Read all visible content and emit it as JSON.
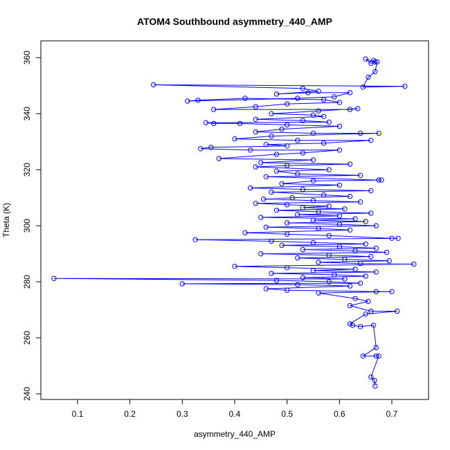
{
  "chart_data": {
    "type": "scatter",
    "title": "ATOM4 Southbound asymmetry_440_AMP",
    "xlabel": "asymmetry_440_AMP",
    "ylabel": "Theta (K)",
    "xlim": [
      0.03,
      0.77
    ],
    "ylim": [
      238,
      366
    ],
    "xticks": [
      0.1,
      0.2,
      0.3,
      0.4,
      0.5,
      0.6,
      0.7
    ],
    "yticks": [
      240,
      260,
      280,
      300,
      320,
      340,
      360
    ],
    "xtick_labels": [
      "0.1",
      "0.2",
      "0.3",
      "0.4",
      "0.5",
      "0.6",
      "0.7"
    ],
    "ytick_labels": [
      "240",
      "260",
      "280",
      "300",
      "320",
      "340",
      "360"
    ],
    "marker": "open-circle",
    "connected": true,
    "series_color": "#0000ff",
    "grid": false,
    "series": [
      {
        "points": [
          [
            0.665,
            359.0
          ],
          [
            0.668,
            358.5
          ],
          [
            0.65,
            359.5
          ],
          [
            0.66,
            358.0
          ],
          [
            0.672,
            358.5
          ],
          [
            0.668,
            355.0
          ],
          [
            0.655,
            353.0
          ],
          [
            0.645,
            349.5
          ],
          [
            0.725,
            349.8
          ],
          [
            0.245,
            350.3
          ],
          [
            0.53,
            349.0
          ],
          [
            0.56,
            348.0
          ],
          [
            0.48,
            347.0
          ],
          [
            0.54,
            347.5
          ],
          [
            0.62,
            347.5
          ],
          [
            0.59,
            346.0
          ],
          [
            0.52,
            345.5
          ],
          [
            0.31,
            344.5
          ],
          [
            0.33,
            344.8
          ],
          [
            0.42,
            345.5
          ],
          [
            0.57,
            345.0
          ],
          [
            0.6,
            344.0
          ],
          [
            0.5,
            343.5
          ],
          [
            0.44,
            342.5
          ],
          [
            0.36,
            341.5
          ],
          [
            0.62,
            341.5
          ],
          [
            0.635,
            341.8
          ],
          [
            0.56,
            341.0
          ],
          [
            0.47,
            340.0
          ],
          [
            0.55,
            339.5
          ],
          [
            0.57,
            339.0
          ],
          [
            0.44,
            338.0
          ],
          [
            0.53,
            337.5
          ],
          [
            0.58,
            337.0
          ],
          [
            0.345,
            336.8
          ],
          [
            0.36,
            336.5
          ],
          [
            0.41,
            336.5
          ],
          [
            0.5,
            336.0
          ],
          [
            0.6,
            335.5
          ],
          [
            0.49,
            334.5
          ],
          [
            0.44,
            333.5
          ],
          [
            0.55,
            333.0
          ],
          [
            0.64,
            333.0
          ],
          [
            0.675,
            333.0
          ],
          [
            0.47,
            332.0
          ],
          [
            0.4,
            331.0
          ],
          [
            0.52,
            330.5
          ],
          [
            0.66,
            330.5
          ],
          [
            0.57,
            329.5
          ],
          [
            0.46,
            329.0
          ],
          [
            0.5,
            328.5
          ],
          [
            0.355,
            328.0
          ],
          [
            0.335,
            327.5
          ],
          [
            0.43,
            327.0
          ],
          [
            0.6,
            327.0
          ],
          [
            0.53,
            326.0
          ],
          [
            0.48,
            325.5
          ],
          [
            0.37,
            324.0
          ],
          [
            0.55,
            323.5
          ],
          [
            0.45,
            322.5
          ],
          [
            0.62,
            322.0
          ],
          [
            0.5,
            321.5
          ],
          [
            0.44,
            321.0
          ],
          [
            0.58,
            320.0
          ],
          [
            0.48,
            319.5
          ],
          [
            0.52,
            318.5
          ],
          [
            0.64,
            318.0
          ],
          [
            0.46,
            317.5
          ],
          [
            0.675,
            316.3
          ],
          [
            0.68,
            316.3
          ],
          [
            0.55,
            316.0
          ],
          [
            0.49,
            315.0
          ],
          [
            0.6,
            314.5
          ],
          [
            0.43,
            313.5
          ],
          [
            0.53,
            313.0
          ],
          [
            0.66,
            312.5
          ],
          [
            0.47,
            312.0
          ],
          [
            0.57,
            311.0
          ],
          [
            0.62,
            310.5
          ],
          [
            0.51,
            310.0
          ],
          [
            0.455,
            309.5
          ],
          [
            0.55,
            309.0
          ],
          [
            0.64,
            308.5
          ],
          [
            0.44,
            308.0
          ],
          [
            0.5,
            307.5
          ],
          [
            0.58,
            307.0
          ],
          [
            0.53,
            306.5
          ],
          [
            0.61,
            306.0
          ],
          [
            0.48,
            305.5
          ],
          [
            0.56,
            305.0
          ],
          [
            0.66,
            304.5
          ],
          [
            0.52,
            304.0
          ],
          [
            0.6,
            303.5
          ],
          [
            0.45,
            303.0
          ],
          [
            0.63,
            302.5
          ],
          [
            0.55,
            302.0
          ],
          [
            0.65,
            301.5
          ],
          [
            0.5,
            301.0
          ],
          [
            0.6,
            300.5
          ],
          [
            0.67,
            300.0
          ],
          [
            0.46,
            299.5
          ],
          [
            0.56,
            299.0
          ],
          [
            0.62,
            298.5
          ],
          [
            0.42,
            297.5
          ],
          [
            0.5,
            297.0
          ],
          [
            0.58,
            296.5
          ],
          [
            0.7,
            295.5
          ],
          [
            0.712,
            295.5
          ],
          [
            0.325,
            295.0
          ],
          [
            0.47,
            294.5
          ],
          [
            0.55,
            294.0
          ],
          [
            0.65,
            293.5
          ],
          [
            0.49,
            293.0
          ],
          [
            0.6,
            292.5
          ],
          [
            0.67,
            292.0
          ],
          [
            0.53,
            291.5
          ],
          [
            0.63,
            291.0
          ],
          [
            0.69,
            290.5
          ],
          [
            0.45,
            290.0
          ],
          [
            0.58,
            289.5
          ],
          [
            0.66,
            289.0
          ],
          [
            0.52,
            288.5
          ],
          [
            0.61,
            288.0
          ],
          [
            0.695,
            287.5
          ],
          [
            0.56,
            287.0
          ],
          [
            0.64,
            286.5
          ],
          [
            0.742,
            286.3
          ],
          [
            0.4,
            285.5
          ],
          [
            0.5,
            285.0
          ],
          [
            0.63,
            284.5
          ],
          [
            0.55,
            284.0
          ],
          [
            0.67,
            283.5
          ],
          [
            0.47,
            283.0
          ],
          [
            0.59,
            282.5
          ],
          [
            0.65,
            282.0
          ],
          [
            0.53,
            281.5
          ],
          [
            0.61,
            281.0
          ],
          [
            0.055,
            281.2
          ],
          [
            0.48,
            280.5
          ],
          [
            0.58,
            280.0
          ],
          [
            0.64,
            279.5
          ],
          [
            0.3,
            279.3
          ],
          [
            0.52,
            279.0
          ],
          [
            0.62,
            278.5
          ],
          [
            0.46,
            277.5
          ],
          [
            0.5,
            277.0
          ],
          [
            0.67,
            276.5
          ],
          [
            0.7,
            276.5
          ],
          [
            0.56,
            276.0
          ],
          [
            0.63,
            274.0
          ],
          [
            0.655,
            273.0
          ],
          [
            0.62,
            271.5
          ],
          [
            0.66,
            269.5
          ],
          [
            0.71,
            269.5
          ],
          [
            0.65,
            268.5
          ],
          [
            0.62,
            265.0
          ],
          [
            0.625,
            264.5
          ],
          [
            0.64,
            264.0
          ],
          [
            0.665,
            264.5
          ],
          [
            0.67,
            256.5
          ],
          [
            0.645,
            253.5
          ],
          [
            0.67,
            253.5
          ],
          [
            0.675,
            253.5
          ],
          [
            0.66,
            246.0
          ],
          [
            0.667,
            244.8
          ],
          [
            0.668,
            242.8
          ]
        ]
      }
    ]
  }
}
